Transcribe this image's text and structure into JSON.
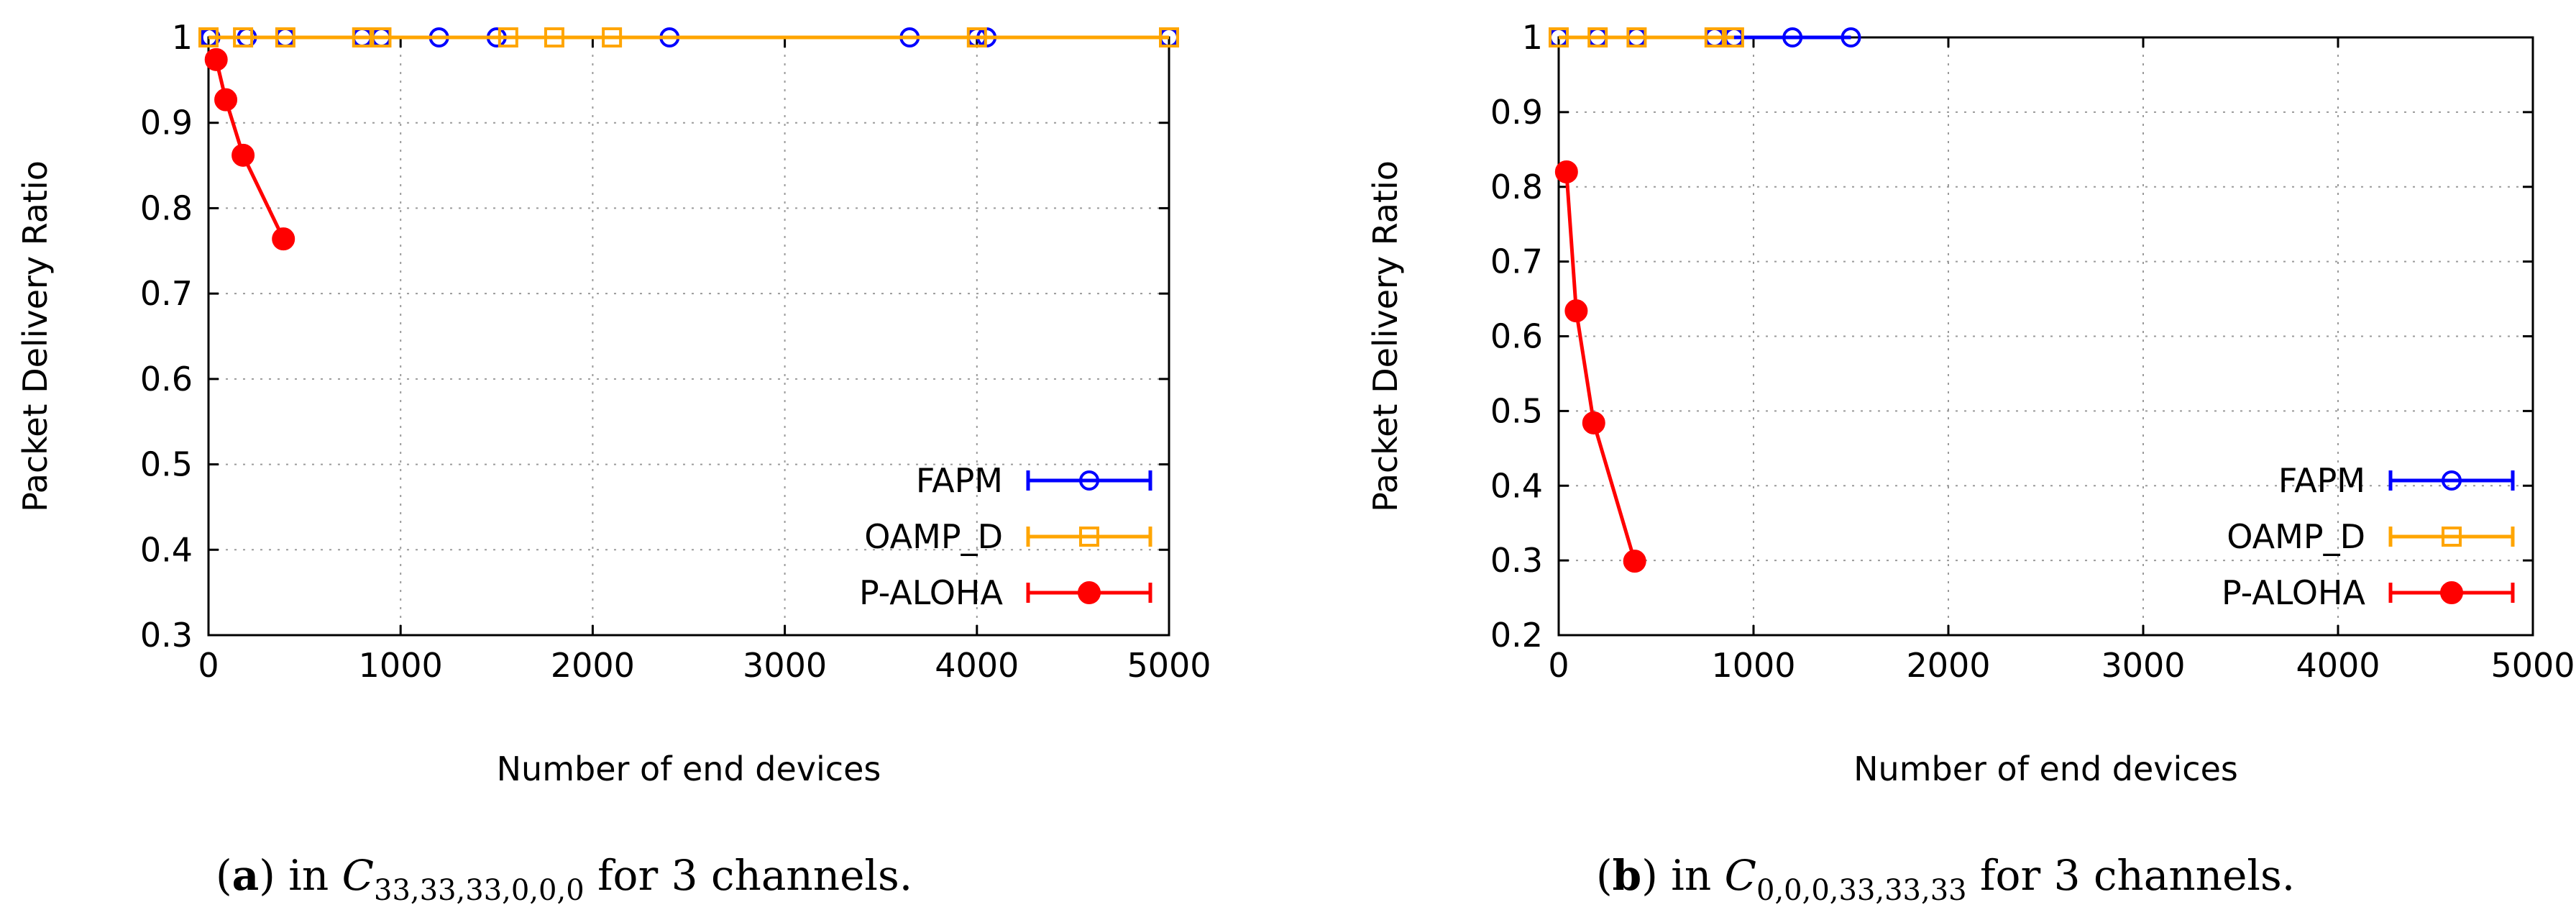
{
  "chart_data": [
    {
      "id": "a",
      "type": "line",
      "xlabel": "Number of end devices",
      "ylabel": "Packet Delivery Ratio",
      "xlim": [
        0,
        5000
      ],
      "ylim": [
        0.3,
        1.0
      ],
      "xticks": [
        0,
        1000,
        2000,
        3000,
        4000,
        5000
      ],
      "yticks": [
        0.3,
        0.4,
        0.5,
        0.6,
        0.7,
        0.8,
        0.9,
        1.0
      ],
      "xtick_labels": [
        "0",
        "1000",
        "2000",
        "3000",
        "4000",
        "5000"
      ],
      "ytick_labels": [
        "0.3",
        "0.4",
        "0.5",
        "0.6",
        "0.7",
        "0.8",
        "0.9",
        "1"
      ],
      "grid": true,
      "legend_position": "bottom-right",
      "series": [
        {
          "name": "FAPM",
          "color": "#0000ff",
          "marker": "open-circle",
          "x": [
            0,
            10,
            200,
            400,
            800,
            900,
            1200,
            1500,
            2400,
            3650,
            4000,
            4050,
            5000
          ],
          "y": [
            1,
            1,
            1,
            1,
            1,
            1,
            1,
            1,
            1,
            1,
            1,
            1,
            1
          ]
        },
        {
          "name": "OAMP_D",
          "color": "#ffa500",
          "marker": "open-square",
          "x": [
            0,
            180,
            400,
            800,
            900,
            1560,
            1800,
            2100,
            4000,
            5000
          ],
          "y": [
            1,
            1,
            1,
            1,
            1,
            1,
            1,
            1,
            1,
            1
          ]
        },
        {
          "name": "P-ALOHA",
          "color": "#ff0000",
          "marker": "filled-circle",
          "x": [
            40,
            90,
            180,
            390
          ],
          "y": [
            0.974,
            0.927,
            0.862,
            0.764
          ]
        }
      ],
      "caption": {
        "label": "a",
        "prefix": " in ",
        "symbol": "C",
        "subscript": "33,33,33,0,0,0",
        "suffix": " for 3 channels."
      }
    },
    {
      "id": "b",
      "type": "line",
      "xlabel": "Number of end devices",
      "ylabel": "Packet Delivery Ratio",
      "xlim": [
        0,
        5000
      ],
      "ylim": [
        0.2,
        1.0
      ],
      "xticks": [
        0,
        1000,
        2000,
        3000,
        4000,
        5000
      ],
      "yticks": [
        0.2,
        0.3,
        0.4,
        0.5,
        0.6,
        0.7,
        0.8,
        0.9,
        1.0
      ],
      "xtick_labels": [
        "0",
        "1000",
        "2000",
        "3000",
        "4000",
        "5000"
      ],
      "ytick_labels": [
        "0.2",
        "0.3",
        "0.4",
        "0.5",
        "0.6",
        "0.7",
        "0.8",
        "0.9",
        "1"
      ],
      "grid": true,
      "legend_position": "bottom-right",
      "series": [
        {
          "name": "FAPM",
          "color": "#0000ff",
          "marker": "open-circle",
          "x": [
            0,
            200,
            400,
            800,
            900,
            1200,
            1500
          ],
          "y": [
            1,
            1,
            1,
            1,
            1,
            1,
            1
          ]
        },
        {
          "name": "OAMP_D",
          "color": "#ffa500",
          "marker": "open-square",
          "x": [
            0,
            200,
            400,
            800,
            900
          ],
          "y": [
            1,
            1,
            1,
            1,
            1
          ]
        },
        {
          "name": "P-ALOHA",
          "color": "#ff0000",
          "marker": "filled-circle",
          "x": [
            40,
            90,
            180,
            390
          ],
          "y": [
            0.82,
            0.634,
            0.484,
            0.299
          ]
        }
      ],
      "caption": {
        "label": "b",
        "prefix": " in ",
        "symbol": "C",
        "subscript": "0,0,0,33,33,33",
        "suffix": " for 3 channels."
      }
    }
  ]
}
